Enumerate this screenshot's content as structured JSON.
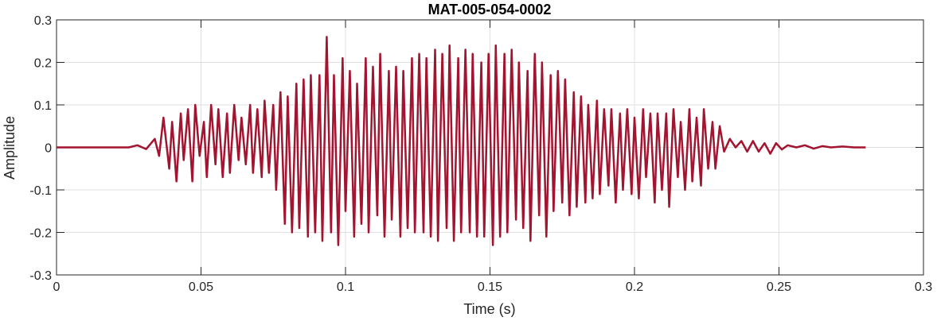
{
  "chart_data": {
    "type": "line",
    "title": "MAT-005-054-0002",
    "xlabel": "Time (s)",
    "ylabel": "Amplitude",
    "xlim": [
      0,
      0.3
    ],
    "ylim": [
      -0.3,
      0.3
    ],
    "xticks": [
      0,
      0.05,
      0.1,
      0.15,
      0.2,
      0.25,
      0.3
    ],
    "xtick_labels": [
      "0",
      "0.05",
      "0.1",
      "0.15",
      "0.2",
      "0.25",
      "0.3"
    ],
    "yticks": [
      -0.3,
      -0.2,
      -0.1,
      0,
      0.1,
      0.2,
      0.3
    ],
    "ytick_labels": [
      "-0.3",
      "-0.2",
      "-0.1",
      "0",
      "0.1",
      "0.2",
      "0.3"
    ],
    "grid": true,
    "line_color": "#A2142F",
    "series": [
      {
        "x": [
          0,
          0.025,
          0.028,
          0.031,
          0.034,
          0.0355,
          0.037,
          0.039,
          0.04,
          0.0415,
          0.043,
          0.044,
          0.0455,
          0.047,
          0.048,
          0.0495,
          0.051,
          0.052,
          0.0535,
          0.055,
          0.056,
          0.0575,
          0.059,
          0.06,
          0.0615,
          0.063,
          0.064,
          0.0655,
          0.067,
          0.068,
          0.0695,
          0.071,
          0.072,
          0.0735,
          0.075,
          0.076,
          0.0775,
          0.079,
          0.08,
          0.0815,
          0.083,
          0.084,
          0.0855,
          0.087,
          0.088,
          0.0895,
          0.091,
          0.092,
          0.0935,
          0.095,
          0.096,
          0.0975,
          0.099,
          0.1,
          0.1015,
          0.103,
          0.104,
          0.1055,
          0.107,
          0.108,
          0.1095,
          0.111,
          0.112,
          0.1135,
          0.115,
          0.116,
          0.1175,
          0.119,
          0.12,
          0.1215,
          0.123,
          0.124,
          0.1255,
          0.127,
          0.128,
          0.1295,
          0.131,
          0.132,
          0.1335,
          0.135,
          0.136,
          0.1375,
          0.139,
          0.14,
          0.1415,
          0.143,
          0.144,
          0.1455,
          0.147,
          0.148,
          0.1495,
          0.151,
          0.152,
          0.1535,
          0.155,
          0.156,
          0.1575,
          0.159,
          0.16,
          0.1615,
          0.163,
          0.164,
          0.1655,
          0.167,
          0.168,
          0.1695,
          0.171,
          0.172,
          0.1735,
          0.175,
          0.176,
          0.1775,
          0.179,
          0.18,
          0.1815,
          0.183,
          0.184,
          0.1855,
          0.187,
          0.188,
          0.1895,
          0.191,
          0.192,
          0.1935,
          0.195,
          0.196,
          0.1975,
          0.199,
          0.2,
          0.2015,
          0.203,
          0.204,
          0.2055,
          0.207,
          0.208,
          0.2095,
          0.211,
          0.212,
          0.2135,
          0.215,
          0.216,
          0.2175,
          0.219,
          0.22,
          0.2215,
          0.223,
          0.224,
          0.2255,
          0.227,
          0.228,
          0.2295,
          0.231,
          0.233,
          0.235,
          0.237,
          0.239,
          0.241,
          0.243,
          0.245,
          0.247,
          0.249,
          0.251,
          0.253,
          0.256,
          0.259,
          0.262,
          0.265,
          0.268,
          0.272,
          0.276,
          0.28
        ],
        "y": [
          0,
          0.0,
          0.005,
          -0.004,
          0.02,
          -0.02,
          0.07,
          -0.05,
          0.06,
          -0.08,
          0.08,
          -0.03,
          0.09,
          -0.08,
          0.1,
          -0.02,
          0.06,
          -0.07,
          0.1,
          -0.04,
          0.09,
          -0.07,
          0.08,
          -0.06,
          0.1,
          -0.03,
          0.07,
          -0.04,
          0.1,
          -0.06,
          0.09,
          -0.07,
          0.11,
          -0.06,
          0.1,
          -0.1,
          0.13,
          -0.18,
          0.12,
          -0.2,
          0.15,
          -0.19,
          0.16,
          -0.21,
          0.17,
          -0.2,
          0.17,
          -0.22,
          0.26,
          -0.2,
          0.17,
          -0.23,
          0.21,
          -0.15,
          0.18,
          -0.21,
          0.15,
          -0.18,
          0.21,
          -0.2,
          0.19,
          -0.16,
          0.22,
          -0.21,
          0.18,
          -0.17,
          0.19,
          -0.21,
          0.18,
          -0.19,
          0.21,
          -0.2,
          0.22,
          -0.2,
          0.21,
          -0.21,
          0.23,
          -0.22,
          0.22,
          -0.19,
          0.24,
          -0.22,
          0.21,
          -0.2,
          0.23,
          -0.2,
          0.22,
          -0.21,
          0.2,
          -0.21,
          0.22,
          -0.23,
          0.24,
          -0.21,
          0.22,
          -0.2,
          0.23,
          -0.17,
          0.2,
          -0.19,
          0.18,
          -0.22,
          0.22,
          -0.16,
          0.2,
          -0.21,
          0.17,
          -0.15,
          0.18,
          -0.13,
          0.16,
          -0.16,
          0.13,
          -0.14,
          0.12,
          -0.13,
          0.1,
          -0.12,
          0.11,
          -0.11,
          0.09,
          -0.09,
          0.09,
          -0.13,
          0.08,
          -0.1,
          0.09,
          -0.11,
          0.07,
          -0.12,
          0.09,
          -0.07,
          0.08,
          -0.13,
          0.08,
          -0.1,
          0.08,
          -0.14,
          0.09,
          -0.07,
          0.06,
          -0.1,
          0.09,
          -0.08,
          0.07,
          -0.09,
          0.09,
          -0.05,
          0.06,
          -0.05,
          0.05,
          -0.01,
          0.02,
          0.0,
          0.015,
          -0.01,
          0.015,
          -0.01,
          0.01,
          -0.015,
          0.01,
          -0.005,
          0.005,
          0.0,
          0.005,
          -0.003,
          0.003,
          0.0,
          0.002,
          0.0,
          0.0
        ]
      }
    ]
  }
}
